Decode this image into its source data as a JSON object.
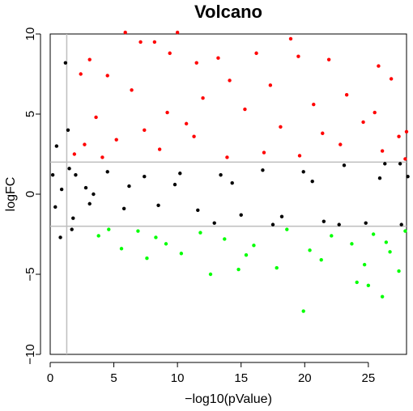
{
  "chart_data": {
    "type": "scatter",
    "title": "Volcano",
    "xlabel": "−log10(pValue)",
    "ylabel": "logFC",
    "xlim": [
      0,
      28
    ],
    "ylim": [
      -10,
      10
    ],
    "xticks": [
      0,
      5,
      10,
      15,
      20,
      25
    ],
    "yticks": [
      -10,
      -5,
      0,
      5,
      10
    ],
    "xtick_labels": [
      "0",
      "5",
      "10",
      "15",
      "20",
      "25"
    ],
    "ytick_labels": [
      "−10",
      "−5",
      "0",
      "5",
      "10"
    ],
    "grid": false,
    "reference_lines": {
      "vertical_x": [
        1.3
      ],
      "horizontal_y": [
        2,
        -2
      ],
      "color": "#bebebe"
    },
    "series": [
      {
        "color": "#ff0000",
        "points": [
          [
            5.9,
            10.1
          ],
          [
            10,
            10.1
          ],
          [
            18.9,
            9.7
          ],
          [
            7.1,
            9.5
          ],
          [
            8.2,
            9.5
          ],
          [
            9.4,
            8.8
          ],
          [
            11.5,
            8.2
          ],
          [
            13.2,
            8.5
          ],
          [
            16.2,
            8.8
          ],
          [
            19.5,
            8.6
          ],
          [
            21.9,
            8.4
          ],
          [
            25.8,
            8.0
          ],
          [
            26.8,
            7.2
          ],
          [
            3.1,
            8.4
          ],
          [
            4.5,
            7.4
          ],
          [
            2.4,
            7.5
          ],
          [
            14.1,
            7.1
          ],
          [
            17.3,
            6.8
          ],
          [
            23.3,
            6.2
          ],
          [
            6.4,
            6.5
          ],
          [
            12.0,
            6.0
          ],
          [
            20.7,
            5.6
          ],
          [
            9.2,
            5.1
          ],
          [
            15.3,
            5.3
          ],
          [
            3.6,
            4.8
          ],
          [
            18.1,
            4.2
          ],
          [
            24.6,
            4.5
          ],
          [
            27.4,
            3.6
          ],
          [
            28.0,
            3.9
          ],
          [
            5.2,
            3.4
          ],
          [
            11.3,
            3.6
          ],
          [
            22.8,
            3.1
          ],
          [
            2.7,
            3.1
          ],
          [
            8.6,
            2.8
          ],
          [
            16.8,
            2.6
          ],
          [
            26.1,
            2.7
          ],
          [
            27.9,
            2.2
          ],
          [
            1.9,
            2.5
          ],
          [
            13.9,
            2.3
          ],
          [
            19.6,
            2.4
          ],
          [
            7.4,
            4.0
          ],
          [
            10.7,
            4.4
          ],
          [
            21.4,
            3.8
          ],
          [
            25.5,
            5.1
          ],
          [
            4.1,
            2.3
          ]
        ]
      },
      {
        "color": "#000000",
        "points": [
          [
            1.2,
            8.2
          ],
          [
            0.2,
            1.2
          ],
          [
            0.4,
            -0.8
          ],
          [
            0.9,
            0.3
          ],
          [
            1.5,
            1.6
          ],
          [
            1.8,
            -1.5
          ],
          [
            2.0,
            1.2
          ],
          [
            3.1,
            -0.6
          ],
          [
            4.5,
            1.4
          ],
          [
            5.8,
            -0.9
          ],
          [
            7.4,
            1.1
          ],
          [
            8.5,
            -0.7
          ],
          [
            10.2,
            1.3
          ],
          [
            11.6,
            -1.0
          ],
          [
            13.4,
            1.2
          ],
          [
            15.0,
            -1.3
          ],
          [
            16.7,
            1.5
          ],
          [
            18.2,
            -1.4
          ],
          [
            19.9,
            1.4
          ],
          [
            21.5,
            -1.7
          ],
          [
            23.1,
            1.8
          ],
          [
            24.8,
            -1.8
          ],
          [
            26.3,
            1.9
          ],
          [
            27.6,
            -1.9
          ],
          [
            0.5,
            3.0
          ],
          [
            0.8,
            -2.7
          ],
          [
            2.8,
            0.4
          ],
          [
            6.2,
            0.5
          ],
          [
            9.8,
            0.6
          ],
          [
            14.3,
            0.7
          ],
          [
            20.6,
            0.8
          ],
          [
            25.9,
            1.0
          ],
          [
            28.1,
            1.1
          ],
          [
            27.5,
            1.9
          ],
          [
            12.9,
            -1.8
          ],
          [
            17.5,
            -1.9
          ],
          [
            22.7,
            -1.9
          ],
          [
            1.4,
            4.0
          ],
          [
            1.7,
            -2.2
          ],
          [
            3.4,
            0.0
          ]
        ]
      },
      {
        "color": "#00ff00",
        "points": [
          [
            19.9,
            -7.3
          ],
          [
            26.1,
            -6.4
          ],
          [
            25.0,
            -5.7
          ],
          [
            24.1,
            -5.5
          ],
          [
            12.6,
            -5.0
          ],
          [
            14.8,
            -4.7
          ],
          [
            17.8,
            -4.6
          ],
          [
            21.3,
            -4.1
          ],
          [
            7.6,
            -4.0
          ],
          [
            10.3,
            -3.7
          ],
          [
            5.6,
            -3.4
          ],
          [
            9.1,
            -3.1
          ],
          [
            16.0,
            -3.2
          ],
          [
            23.7,
            -3.1
          ],
          [
            27.4,
            -4.8
          ],
          [
            26.7,
            -3.6
          ],
          [
            3.8,
            -2.6
          ],
          [
            6.9,
            -2.3
          ],
          [
            11.8,
            -2.4
          ],
          [
            18.6,
            -2.2
          ],
          [
            22.1,
            -2.6
          ],
          [
            25.4,
            -2.5
          ],
          [
            27.9,
            -2.3
          ],
          [
            20.4,
            -3.5
          ],
          [
            13.7,
            -2.8
          ],
          [
            24.7,
            -4.4
          ],
          [
            26.4,
            -3.0
          ],
          [
            4.6,
            -2.2
          ],
          [
            8.3,
            -2.7
          ],
          [
            15.4,
            -3.8
          ]
        ]
      }
    ]
  }
}
